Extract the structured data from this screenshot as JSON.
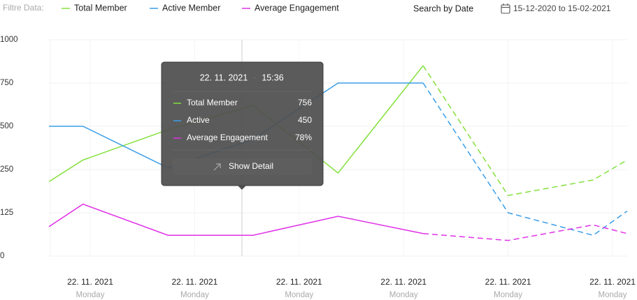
{
  "chart_data": {
    "type": "line",
    "filter_label": "Filtre Data:",
    "search_label": "Search by Date",
    "date_range": "15-12-2020 to 15-02-2021",
    "x": [
      0.6,
      1,
      2,
      3,
      4,
      5,
      6,
      7,
      7.4
    ],
    "xlim": [
      0.6,
      7.4
    ],
    "x_labels": [
      {
        "date": "22. 11. 2021",
        "day": "Monday"
      },
      {
        "date": "22. 11. 2021",
        "day": "Monday"
      },
      {
        "date": "22. 11. 2021",
        "day": "Monday"
      },
      {
        "date": "22. 11. 2021",
        "day": "Monday"
      },
      {
        "date": "22. 11. 2021",
        "day": "Monday"
      },
      {
        "date": "22. 11. 2021",
        "day": "Monday"
      }
    ],
    "ylim": [
      0,
      1000
    ],
    "yticks": [
      0,
      125,
      250,
      500,
      750,
      1000
    ],
    "grid": true,
    "dashed_from": 5,
    "series": [
      {
        "name": "Total Member",
        "color": "#84e03c",
        "values": [
          215,
          305,
          480,
          620,
          240,
          850,
          175,
          220,
          305
        ]
      },
      {
        "name": "Active Member",
        "color": "#3a9ee8",
        "values": [
          500,
          500,
          260,
          425,
          750,
          750,
          125,
          60,
          130
        ]
      },
      {
        "name": "Average  Engagement",
        "color": "#e030e8",
        "values": [
          85,
          150,
          60,
          60,
          115,
          65,
          45,
          90,
          65
        ]
      }
    ],
    "tooltip": {
      "date": "22. 11. 2021",
      "time": "15:36",
      "rows": [
        {
          "label": "Total Member",
          "value": "756"
        },
        {
          "label": "Active",
          "value": "450"
        },
        {
          "label": "Average Engagement",
          "value": "78%"
        }
      ],
      "button": "Show Detail"
    }
  }
}
